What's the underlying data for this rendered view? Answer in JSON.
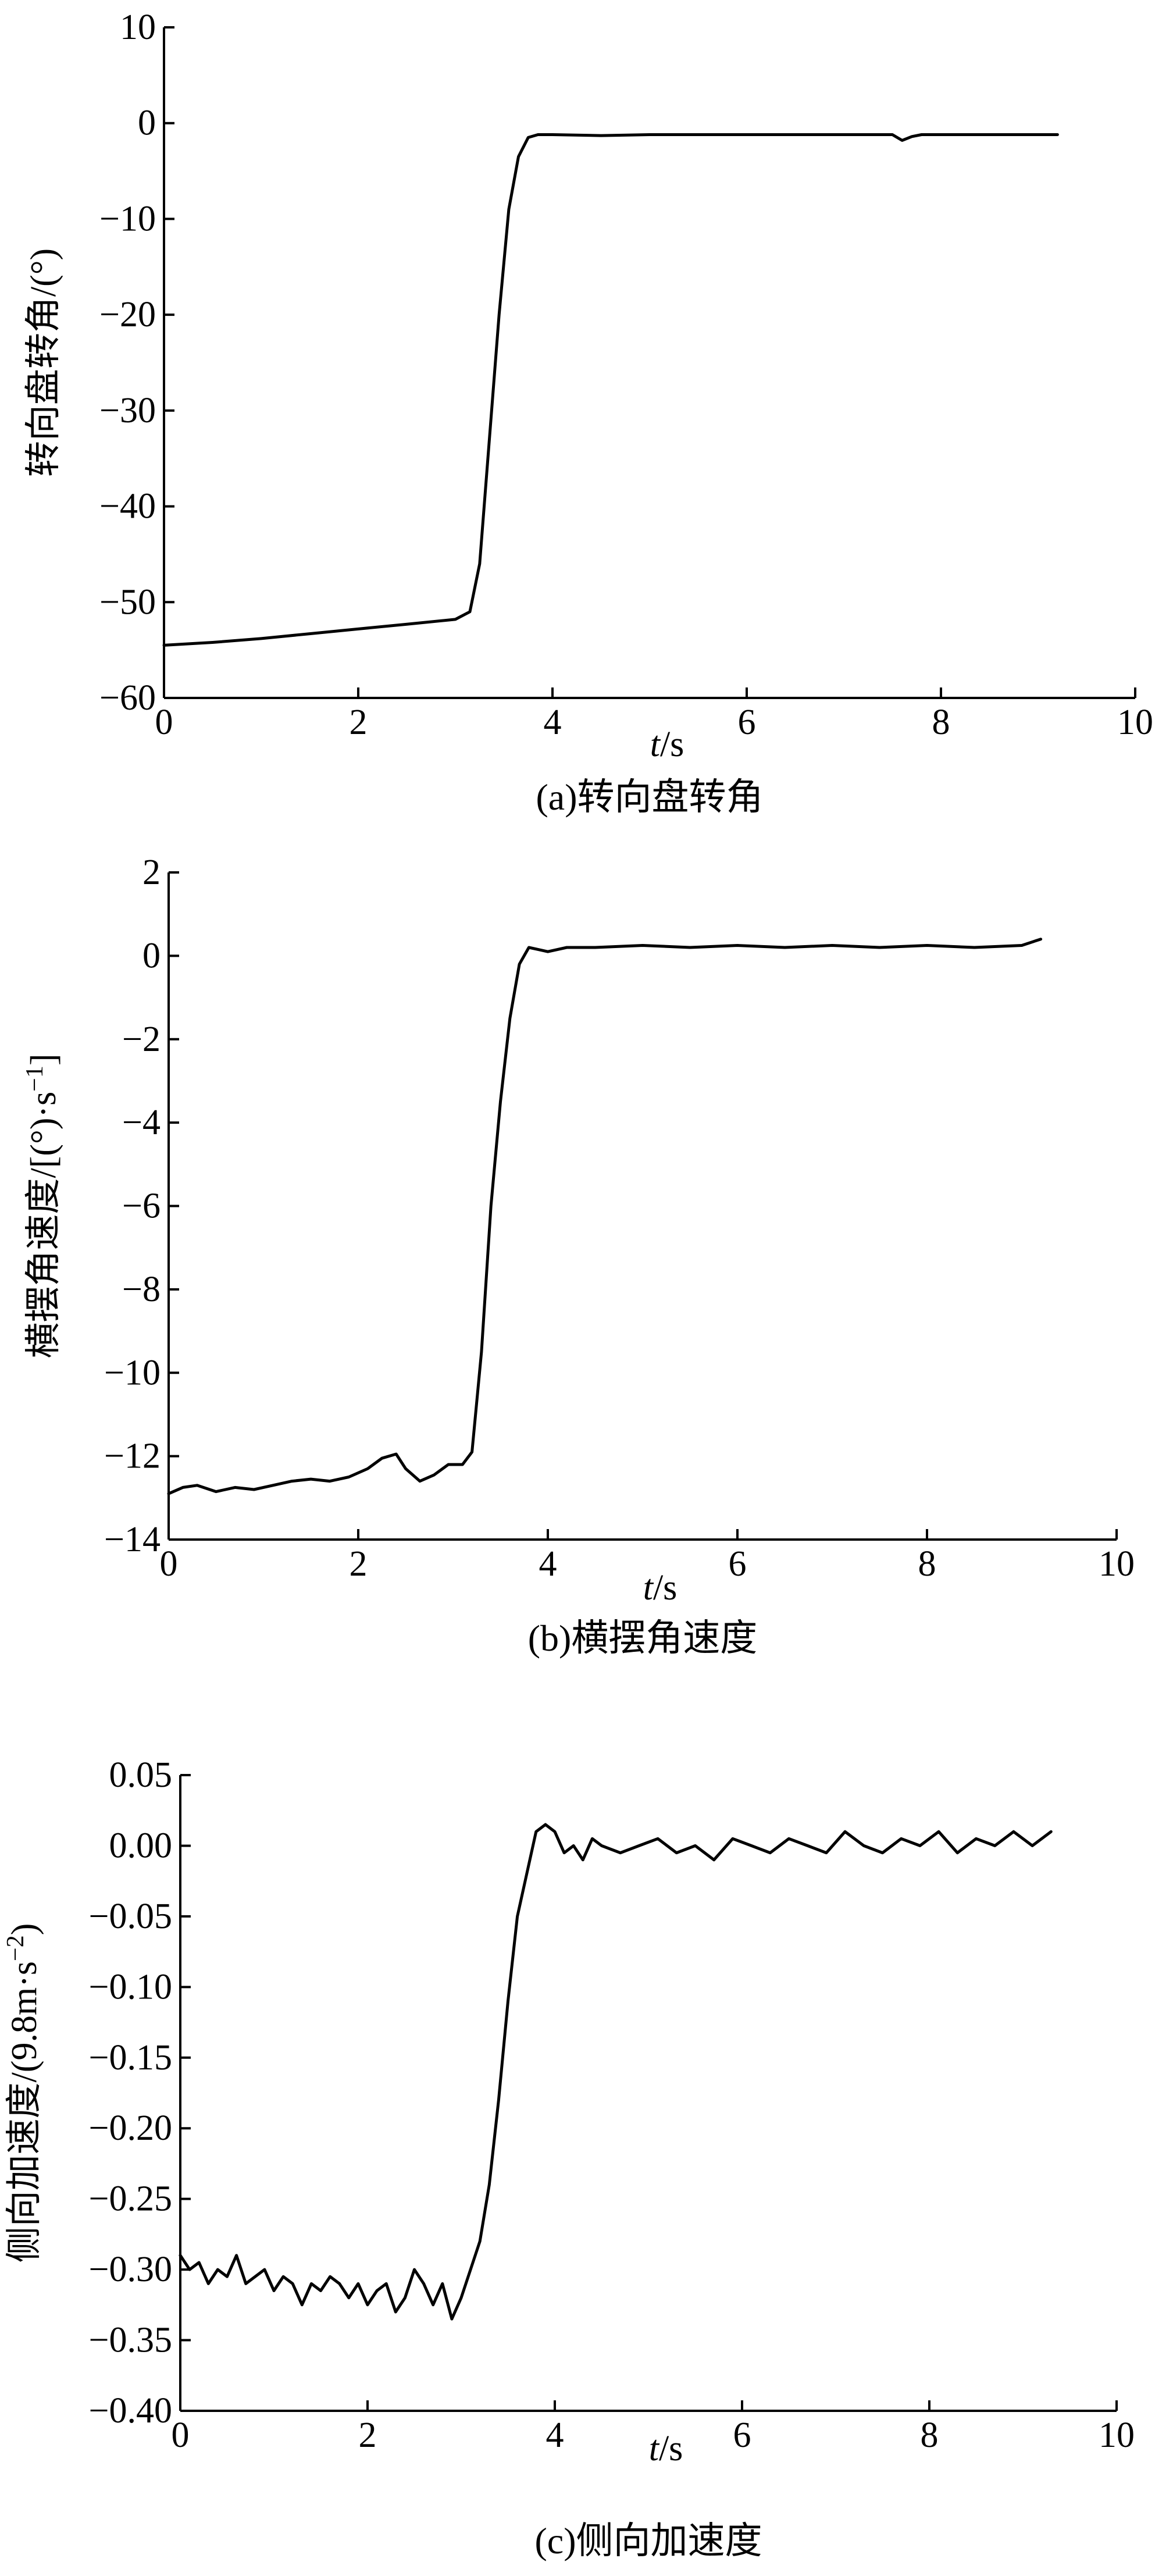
{
  "chart_data": [
    {
      "type": "line",
      "caption": "(a)转向盘转角",
      "ylabel": "转向盘转角/(°)",
      "xlabel_italic": "t",
      "xlabel_unit": "/s",
      "xlim": [
        0,
        10
      ],
      "ylim": [
        -60,
        10
      ],
      "xticks": [
        "0",
        "2",
        "4",
        "6",
        "8",
        "10"
      ],
      "xtick_values": [
        0,
        2,
        4,
        6,
        8,
        10
      ],
      "yticks": [
        "10",
        "0",
        "−10",
        "−20",
        "−30",
        "−40",
        "−50",
        "−60"
      ],
      "ytick_values": [
        10,
        0,
        -10,
        -20,
        -30,
        -40,
        -50,
        -60
      ],
      "series": [
        {
          "x": [
            0,
            0.5,
            1.0,
            1.5,
            2.0,
            2.5,
            3.0,
            3.15,
            3.25,
            3.35,
            3.45,
            3.55,
            3.65,
            3.75,
            3.85,
            4.0,
            4.5,
            5.0,
            5.5,
            6.0,
            6.5,
            7.0,
            7.5,
            7.6,
            7.7,
            7.8,
            8.0,
            8.5,
            9.0,
            9.2
          ],
          "y": [
            -54.5,
            -54.2,
            -53.8,
            -53.3,
            -52.8,
            -52.3,
            -51.8,
            -51,
            -46,
            -33,
            -20,
            -9,
            -3.5,
            -1.5,
            -1.2,
            -1.2,
            -1.3,
            -1.2,
            -1.2,
            -1.2,
            -1.2,
            -1.2,
            -1.2,
            -1.8,
            -1.4,
            -1.2,
            -1.2,
            -1.2,
            -1.2,
            -1.2
          ]
        }
      ]
    },
    {
      "type": "line",
      "caption": "(b)横摆角速度",
      "ylabel": "横摆角速度/[(°)·s",
      "ylabel_sup": "−1",
      "ylabel_tail": "]",
      "xlabel_italic": "t",
      "xlabel_unit": "/s",
      "xlim": [
        0,
        10
      ],
      "ylim": [
        -14,
        2
      ],
      "xticks": [
        "0",
        "2",
        "4",
        "6",
        "8",
        "10"
      ],
      "xtick_values": [
        0,
        2,
        4,
        6,
        8,
        10
      ],
      "yticks": [
        "2",
        "0",
        "−2",
        "−4",
        "−6",
        "−8",
        "−10",
        "−12",
        "−14"
      ],
      "ytick_values": [
        2,
        0,
        -2,
        -4,
        -6,
        -8,
        -10,
        -12,
        -14
      ],
      "series": [
        {
          "x": [
            0,
            0.15,
            0.3,
            0.5,
            0.7,
            0.9,
            1.1,
            1.3,
            1.5,
            1.7,
            1.9,
            2.1,
            2.25,
            2.4,
            2.5,
            2.65,
            2.8,
            2.95,
            3.1,
            3.2,
            3.3,
            3.4,
            3.5,
            3.6,
            3.7,
            3.8,
            3.9,
            4.0,
            4.2,
            4.5,
            5.0,
            5.5,
            6.0,
            6.5,
            7.0,
            7.5,
            8.0,
            8.5,
            9.0,
            9.2
          ],
          "y": [
            -12.9,
            -12.75,
            -12.7,
            -12.85,
            -12.75,
            -12.8,
            -12.7,
            -12.6,
            -12.55,
            -12.6,
            -12.5,
            -12.3,
            -12.05,
            -11.95,
            -12.3,
            -12.6,
            -12.45,
            -12.2,
            -12.2,
            -11.9,
            -9.5,
            -6,
            -3.5,
            -1.5,
            -0.2,
            0.2,
            0.15,
            0.1,
            0.2,
            0.2,
            0.25,
            0.2,
            0.25,
            0.2,
            0.25,
            0.2,
            0.25,
            0.2,
            0.25,
            0.4
          ]
        }
      ]
    },
    {
      "type": "line",
      "caption": "(c)侧向加速度",
      "ylabel": "侧向加速度/(9.8m·s",
      "ylabel_sup": "−2",
      "ylabel_tail": ")",
      "xlabel_italic": "t",
      "xlabel_unit": "/s",
      "xlim": [
        0,
        10
      ],
      "ylim": [
        -0.4,
        0.05
      ],
      "xticks": [
        "0",
        "2",
        "4",
        "6",
        "8",
        "10"
      ],
      "xtick_values": [
        0,
        2,
        4,
        6,
        8,
        10
      ],
      "yticks": [
        "0.05",
        "0.00",
        "−0.05",
        "−0.10",
        "−0.15",
        "−0.20",
        "−0.25",
        "−0.30",
        "−0.35",
        "−0.40"
      ],
      "ytick_values": [
        0.05,
        0.0,
        -0.05,
        -0.1,
        -0.15,
        -0.2,
        -0.25,
        -0.3,
        -0.35,
        -0.4
      ],
      "series": [
        {
          "x": [
            0,
            0.1,
            0.2,
            0.3,
            0.4,
            0.5,
            0.6,
            0.7,
            0.8,
            0.9,
            1.0,
            1.1,
            1.2,
            1.3,
            1.4,
            1.5,
            1.6,
            1.7,
            1.8,
            1.9,
            2.0,
            2.1,
            2.2,
            2.3,
            2.4,
            2.5,
            2.6,
            2.7,
            2.8,
            2.9,
            3.0,
            3.1,
            3.2,
            3.3,
            3.4,
            3.5,
            3.6,
            3.7,
            3.8,
            3.9,
            4.0,
            4.1,
            4.2,
            4.3,
            4.4,
            4.5,
            4.7,
            4.9,
            5.1,
            5.3,
            5.5,
            5.7,
            5.9,
            6.1,
            6.3,
            6.5,
            6.7,
            6.9,
            7.1,
            7.3,
            7.5,
            7.7,
            7.9,
            8.1,
            8.3,
            8.5,
            8.7,
            8.9,
            9.1,
            9.3
          ],
          "y": [
            -0.29,
            -0.3,
            -0.295,
            -0.31,
            -0.3,
            -0.305,
            -0.29,
            -0.31,
            -0.305,
            -0.3,
            -0.315,
            -0.305,
            -0.31,
            -0.325,
            -0.31,
            -0.315,
            -0.305,
            -0.31,
            -0.32,
            -0.31,
            -0.325,
            -0.315,
            -0.31,
            -0.33,
            -0.32,
            -0.3,
            -0.31,
            -0.325,
            -0.31,
            -0.335,
            -0.32,
            -0.3,
            -0.28,
            -0.24,
            -0.18,
            -0.11,
            -0.05,
            -0.02,
            0.01,
            0.015,
            0.01,
            -0.005,
            0.0,
            -0.01,
            0.005,
            0.0,
            -0.005,
            0.0,
            0.005,
            -0.005,
            0.0,
            -0.01,
            0.005,
            0.0,
            -0.005,
            0.005,
            0.0,
            -0.005,
            0.01,
            0.0,
            -0.005,
            0.005,
            0.0,
            0.01,
            -0.005,
            0.005,
            0.0,
            0.01,
            0.0,
            0.01
          ]
        }
      ]
    }
  ]
}
